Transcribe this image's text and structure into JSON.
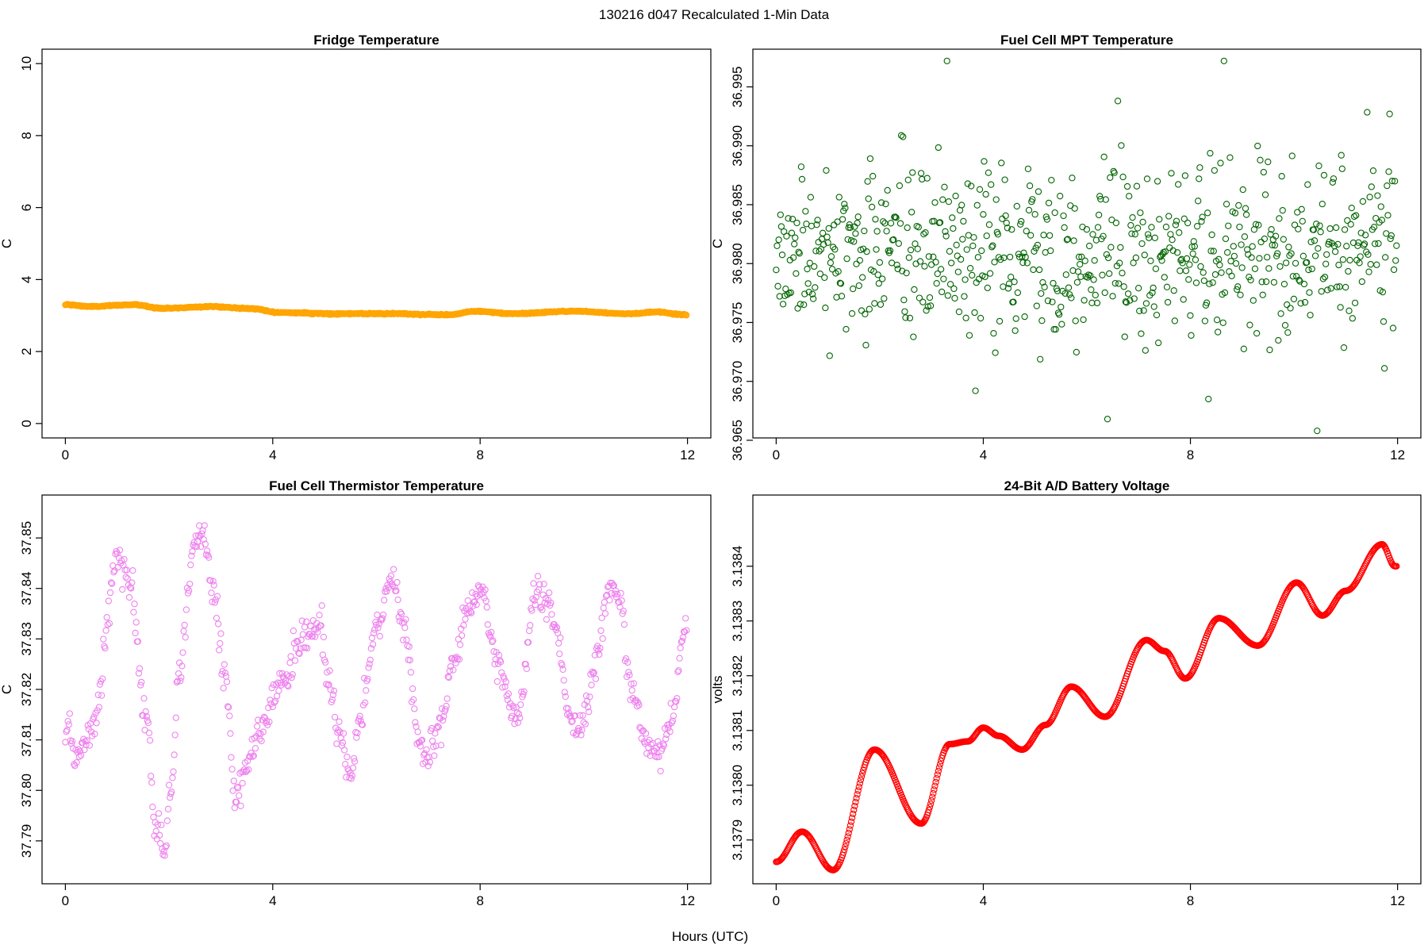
{
  "figure": {
    "title": "130216   d047   Recalculated 1-Min Data",
    "xlabel": "Hours (UTC)"
  },
  "chart_data": [
    {
      "id": "fridge",
      "type": "scatter",
      "title": "Fridge Temperature",
      "ylabel": "C",
      "color": "#ffa500",
      "marker": "circle-open",
      "xlim": [
        -0.45,
        12.45
      ],
      "ylim": [
        -0.4,
        10.4
      ],
      "xticks": [
        0,
        4,
        8,
        12
      ],
      "xtick_labels": [
        "0",
        "4",
        "8",
        "12"
      ],
      "yticks": [
        0,
        2,
        4,
        6,
        8,
        10
      ],
      "ytick_labels": [
        "0",
        "2",
        "4",
        "6",
        "8",
        "10"
      ],
      "series": [
        {
          "name": "Fridge Temperature",
          "generator": "fridge",
          "count": 720,
          "x_range": [
            0,
            11.98
          ],
          "anchors": [
            [
              0,
              3.3
            ],
            [
              0.5,
              3.25
            ],
            [
              1.3,
              3.3
            ],
            [
              1.9,
              3.2
            ],
            [
              2.8,
              3.25
            ],
            [
              3.5,
              3.2
            ],
            [
              4.2,
              3.08
            ],
            [
              5.2,
              3.05
            ],
            [
              6.2,
              3.05
            ],
            [
              7.4,
              3.02
            ],
            [
              7.9,
              3.12
            ],
            [
              8.6,
              3.05
            ],
            [
              9.8,
              3.12
            ],
            [
              10.9,
              3.05
            ],
            [
              11.4,
              3.1
            ],
            [
              11.95,
              3.02
            ]
          ]
        }
      ]
    },
    {
      "id": "mpt",
      "type": "scatter",
      "title": "Fuel Cell MPT Temperature",
      "ylabel": "C",
      "color": "#006400",
      "marker": "circle-open",
      "xlim": [
        -0.45,
        12.45
      ],
      "ylim": [
        36.9652,
        36.9982
      ],
      "xticks": [
        0,
        4,
        8,
        12
      ],
      "xtick_labels": [
        "0",
        "4",
        "8",
        "12"
      ],
      "yticks": [
        36.965,
        36.97,
        36.975,
        36.98,
        36.985,
        36.99,
        36.995
      ],
      "ytick_labels": [
        "36.965",
        "36.970",
        "36.975",
        "36.980",
        "36.985",
        "36.990",
        "36.995"
      ],
      "series": [
        {
          "name": "Fuel Cell MPT Temperature",
          "generator": "random",
          "count": 720,
          "x_range": [
            0,
            11.98
          ],
          "mean": 36.981,
          "sd": 0.0037,
          "extremes": [
            [
              3.3,
              36.9972
            ],
            [
              8.65,
              36.9972
            ],
            [
              6.6,
              36.9938
            ],
            [
              11.85,
              36.9927
            ],
            [
              6.4,
              36.9668
            ],
            [
              10.45,
              36.9658
            ],
            [
              8.35,
              36.9685
            ],
            [
              3.85,
              36.9692
            ]
          ]
        }
      ]
    },
    {
      "id": "thermistor",
      "type": "scatter",
      "title": "Fuel Cell Thermistor Temperature",
      "ylabel": "C",
      "color": "#ee82ee",
      "marker": "circle-open",
      "xlim": [
        -0.45,
        12.45
      ],
      "ylim": [
        37.7815,
        37.8585
      ],
      "xticks": [
        0,
        4,
        8,
        12
      ],
      "xtick_labels": [
        "0",
        "4",
        "8",
        "12"
      ],
      "yticks": [
        37.79,
        37.8,
        37.81,
        37.82,
        37.83,
        37.84,
        37.85
      ],
      "ytick_labels": [
        "37.79",
        "37.80",
        "37.81",
        "37.82",
        "37.83",
        "37.84",
        "37.85"
      ],
      "series": [
        {
          "name": "Fuel Cell Thermistor Temperature",
          "generator": "anchors-noise",
          "count": 720,
          "x_range": [
            0,
            11.98
          ],
          "noise": 0.0018,
          "anchors": [
            [
              0,
              37.812
            ],
            [
              0.25,
              37.806
            ],
            [
              0.5,
              37.812
            ],
            [
              1.0,
              37.845
            ],
            [
              1.25,
              37.84
            ],
            [
              1.55,
              37.815
            ],
            [
              1.75,
              37.792
            ],
            [
              1.9,
              37.787
            ],
            [
              2.05,
              37.8
            ],
            [
              2.2,
              37.825
            ],
            [
              2.5,
              37.848
            ],
            [
              2.65,
              37.852
            ],
            [
              2.85,
              37.84
            ],
            [
              3.1,
              37.82
            ],
            [
              3.3,
              37.797
            ],
            [
              3.55,
              37.807
            ],
            [
              3.8,
              37.812
            ],
            [
              4.1,
              37.82
            ],
            [
              4.6,
              37.83
            ],
            [
              4.9,
              37.833
            ],
            [
              5.1,
              37.82
            ],
            [
              5.3,
              37.81
            ],
            [
              5.5,
              37.802
            ],
            [
              5.7,
              37.815
            ],
            [
              6.0,
              37.832
            ],
            [
              6.3,
              37.842
            ],
            [
              6.55,
              37.832
            ],
            [
              6.8,
              37.812
            ],
            [
              6.95,
              37.806
            ],
            [
              7.2,
              37.812
            ],
            [
              7.5,
              37.826
            ],
            [
              7.8,
              37.837
            ],
            [
              8.05,
              37.838
            ],
            [
              8.3,
              37.826
            ],
            [
              8.6,
              37.817
            ],
            [
              8.75,
              37.815
            ],
            [
              9.05,
              37.838
            ],
            [
              9.3,
              37.838
            ],
            [
              9.5,
              37.83
            ],
            [
              9.7,
              37.815
            ],
            [
              9.95,
              37.812
            ],
            [
              10.25,
              37.826
            ],
            [
              10.5,
              37.84
            ],
            [
              10.7,
              37.838
            ],
            [
              10.9,
              37.82
            ],
            [
              11.2,
              37.81
            ],
            [
              11.45,
              37.807
            ],
            [
              11.7,
              37.815
            ],
            [
              11.95,
              37.832
            ]
          ]
        }
      ]
    },
    {
      "id": "battery",
      "type": "scatter",
      "title": "24-Bit A/D Battery Voltage",
      "ylabel": "volts",
      "color": "#ff0000",
      "marker": "circle-open",
      "xlim": [
        -0.45,
        12.45
      ],
      "ylim": [
        3.13782,
        3.13853
      ],
      "xticks": [
        0,
        4,
        8,
        12
      ],
      "xtick_labels": [
        "0",
        "4",
        "8",
        "12"
      ],
      "yticks": [
        3.1379,
        3.138,
        3.1381,
        3.1382,
        3.1383,
        3.1384
      ],
      "ytick_labels": [
        "3.1379",
        "3.1380",
        "3.1381",
        "3.1382",
        "3.1383",
        "3.1384"
      ],
      "series": [
        {
          "name": "24-Bit A/D Battery Voltage",
          "generator": "anchors-smooth",
          "count": 720,
          "x_range": [
            0,
            11.98
          ],
          "anchors": [
            [
              0,
              3.13786
            ],
            [
              0.5,
              3.137915
            ],
            [
              1.1,
              3.137845
            ],
            [
              1.9,
              3.138065
            ],
            [
              2.8,
              3.13793
            ],
            [
              3.35,
              3.138075
            ],
            [
              3.7,
              3.13808
            ],
            [
              4.0,
              3.138105
            ],
            [
              4.3,
              3.13809
            ],
            [
              4.75,
              3.138065
            ],
            [
              5.2,
              3.13811
            ],
            [
              5.7,
              3.13818
            ],
            [
              6.35,
              3.138125
            ],
            [
              7.15,
              3.138265
            ],
            [
              7.5,
              3.138245
            ],
            [
              7.9,
              3.138195
            ],
            [
              8.55,
              3.138305
            ],
            [
              9.3,
              3.138255
            ],
            [
              10.05,
              3.13837
            ],
            [
              10.55,
              3.13831
            ],
            [
              11.0,
              3.138355
            ],
            [
              11.7,
              3.13844
            ],
            [
              11.95,
              3.1384
            ]
          ]
        }
      ]
    }
  ]
}
